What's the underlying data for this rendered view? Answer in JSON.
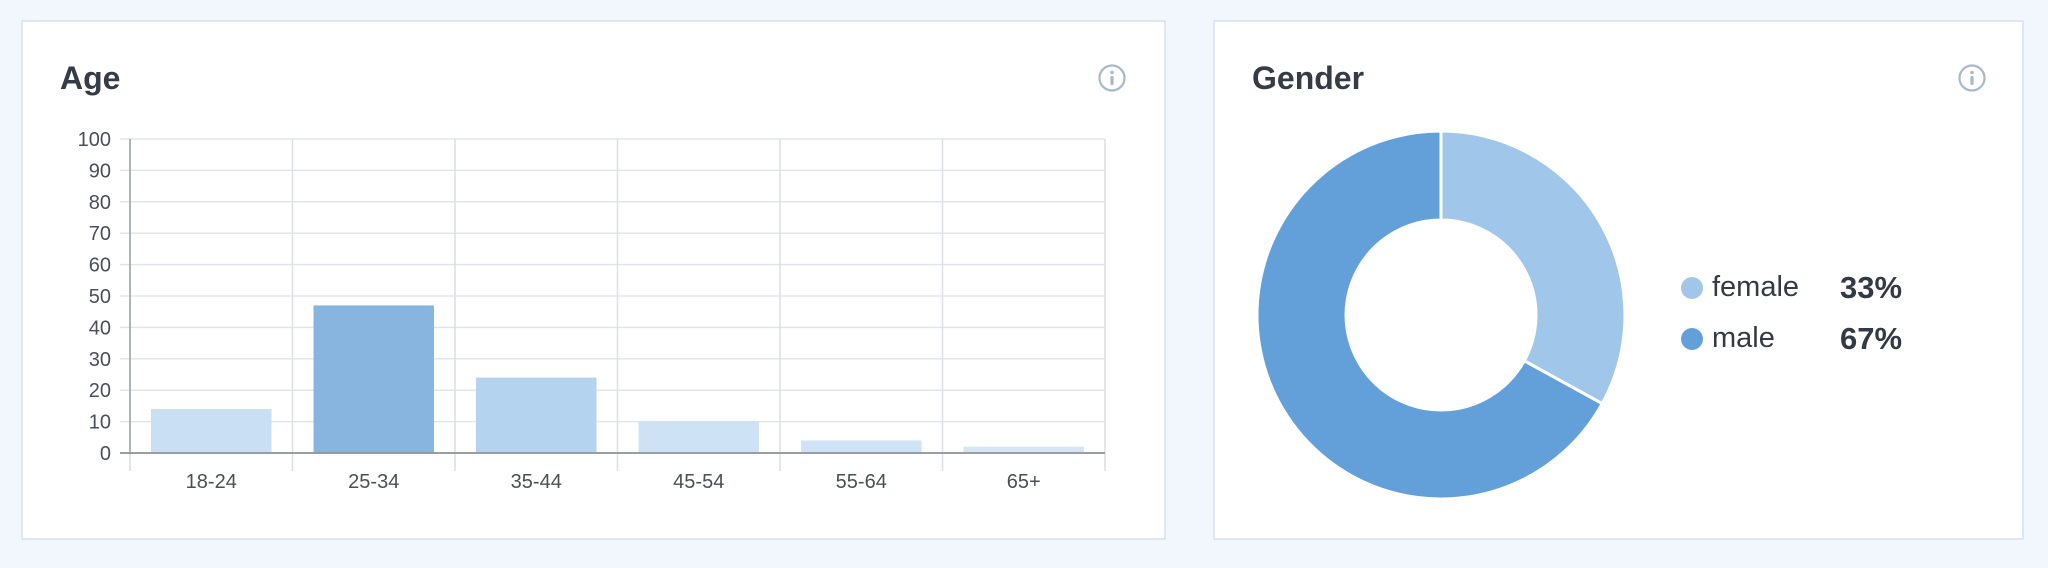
{
  "age_card": {
    "title": "Age"
  },
  "gender_card": {
    "title": "Gender"
  },
  "icons": {
    "info": "info-icon"
  },
  "chart_data": [
    {
      "type": "bar",
      "title": "Age",
      "categories": [
        "18-24",
        "25-34",
        "35-44",
        "45-54",
        "55-64",
        "65+"
      ],
      "values": [
        14,
        47,
        24,
        10,
        4,
        2
      ],
      "yticks": [
        "0",
        "10",
        "20",
        "30",
        "40",
        "50",
        "60",
        "70",
        "80",
        "90",
        "100"
      ],
      "ylim": [
        0,
        100
      ],
      "grid": true,
      "colors": [
        "#c9dff3",
        "#87b5e0",
        "#b4d3ee",
        "#cde2f4",
        "#cfe3f5",
        "#d4e6f6"
      ]
    },
    {
      "type": "pie",
      "title": "Gender",
      "donut": true,
      "legend_position": "right",
      "slices": [
        {
          "label": "female",
          "value": 33,
          "display": "33%",
          "color": "#a0c6ea"
        },
        {
          "label": "male",
          "value": 67,
          "display": "67%",
          "color": "#63a0da"
        }
      ]
    }
  ]
}
